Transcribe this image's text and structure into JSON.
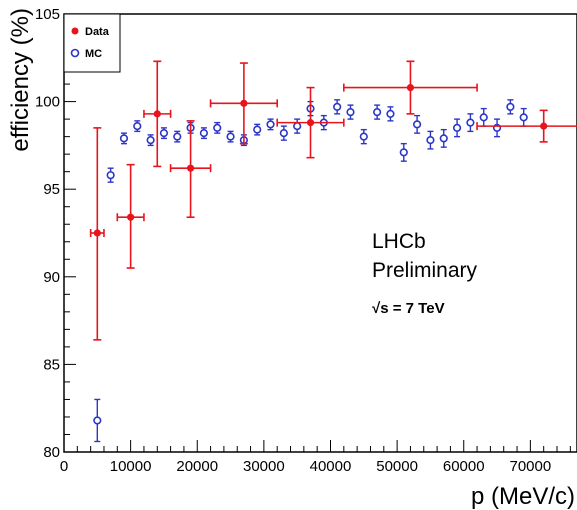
{
  "chart_data": {
    "type": "scatter",
    "xlabel": "p (MeV/c)",
    "ylabel": "efficiency (%)",
    "xlim": [
      0,
      77000
    ],
    "ylim": [
      80,
      105
    ],
    "x_ticks": [
      0,
      10000,
      20000,
      30000,
      40000,
      50000,
      60000,
      70000
    ],
    "x_tick_labels": [
      "0",
      "10000",
      "20000",
      "30000",
      "40000",
      "50000",
      "60000",
      "70000"
    ],
    "y_ticks": [
      80,
      85,
      90,
      95,
      100,
      105
    ],
    "y_tick_labels": [
      "80",
      "85",
      "90",
      "95",
      "100",
      "105"
    ],
    "legend_position": "top-left",
    "annotations": [
      "LHCb",
      "Preliminary",
      "√s = 7 TeV"
    ],
    "series": [
      {
        "name": "Data",
        "marker": "filled-circle",
        "color": "#e8141c",
        "points": [
          {
            "x": 5000,
            "y": 92.5,
            "xerr": 1000,
            "yerr_low": 6.1,
            "yerr_high": 6.0
          },
          {
            "x": 10000,
            "y": 93.4,
            "xerr": 2000,
            "yerr_low": 2.9,
            "yerr_high": 3.0
          },
          {
            "x": 14000,
            "y": 99.3,
            "xerr": 2000,
            "yerr_low": 3.0,
            "yerr_high": 3.0
          },
          {
            "x": 19000,
            "y": 96.2,
            "xerr": 3000,
            "yerr_low": 2.8,
            "yerr_high": 2.7
          },
          {
            "x": 27000,
            "y": 99.9,
            "xerr": 5000,
            "yerr_low": 2.3,
            "yerr_high": 2.3
          },
          {
            "x": 37000,
            "y": 98.8,
            "xerr": 5000,
            "yerr_low": 2.0,
            "yerr_high": 2.0
          },
          {
            "x": 52000,
            "y": 100.8,
            "xerr": 10000,
            "yerr_low": 1.5,
            "yerr_high": 1.5
          },
          {
            "x": 72000,
            "y": 98.6,
            "xerr": 10000,
            "yerr_low": 0.9,
            "yerr_high": 0.9
          }
        ]
      },
      {
        "name": "MC",
        "marker": "open-circle",
        "color": "#2b36c8",
        "points": [
          {
            "x": 5000,
            "y": 81.8,
            "yerr": 1.2
          },
          {
            "x": 7000,
            "y": 95.8,
            "yerr": 0.4
          },
          {
            "x": 9000,
            "y": 97.9,
            "yerr": 0.3
          },
          {
            "x": 11000,
            "y": 98.6,
            "yerr": 0.3
          },
          {
            "x": 13000,
            "y": 97.8,
            "yerr": 0.3
          },
          {
            "x": 15000,
            "y": 98.2,
            "yerr": 0.3
          },
          {
            "x": 17000,
            "y": 98.0,
            "yerr": 0.3
          },
          {
            "x": 19000,
            "y": 98.5,
            "yerr": 0.3
          },
          {
            "x": 21000,
            "y": 98.2,
            "yerr": 0.3
          },
          {
            "x": 23000,
            "y": 98.5,
            "yerr": 0.3
          },
          {
            "x": 25000,
            "y": 98.0,
            "yerr": 0.3
          },
          {
            "x": 27000,
            "y": 97.8,
            "yerr": 0.3
          },
          {
            "x": 29000,
            "y": 98.4,
            "yerr": 0.3
          },
          {
            "x": 31000,
            "y": 98.7,
            "yerr": 0.3
          },
          {
            "x": 33000,
            "y": 98.2,
            "yerr": 0.4
          },
          {
            "x": 35000,
            "y": 98.6,
            "yerr": 0.4
          },
          {
            "x": 37000,
            "y": 99.6,
            "yerr": 0.4
          },
          {
            "x": 39000,
            "y": 98.8,
            "yerr": 0.4
          },
          {
            "x": 41000,
            "y": 99.7,
            "yerr": 0.4
          },
          {
            "x": 43000,
            "y": 99.4,
            "yerr": 0.4
          },
          {
            "x": 45000,
            "y": 98.0,
            "yerr": 0.4
          },
          {
            "x": 47000,
            "y": 99.4,
            "yerr": 0.4
          },
          {
            "x": 49000,
            "y": 99.3,
            "yerr": 0.4
          },
          {
            "x": 51000,
            "y": 97.1,
            "yerr": 0.5
          },
          {
            "x": 53000,
            "y": 98.7,
            "yerr": 0.5
          },
          {
            "x": 55000,
            "y": 97.8,
            "yerr": 0.5
          },
          {
            "x": 57000,
            "y": 97.9,
            "yerr": 0.5
          },
          {
            "x": 59000,
            "y": 98.5,
            "yerr": 0.5
          },
          {
            "x": 61000,
            "y": 98.8,
            "yerr": 0.5
          },
          {
            "x": 63000,
            "y": 99.1,
            "yerr": 0.5
          },
          {
            "x": 65000,
            "y": 98.5,
            "yerr": 0.5
          },
          {
            "x": 67000,
            "y": 99.7,
            "yerr": 0.4
          },
          {
            "x": 69000,
            "y": 99.1,
            "yerr": 0.5
          }
        ]
      }
    ]
  }
}
